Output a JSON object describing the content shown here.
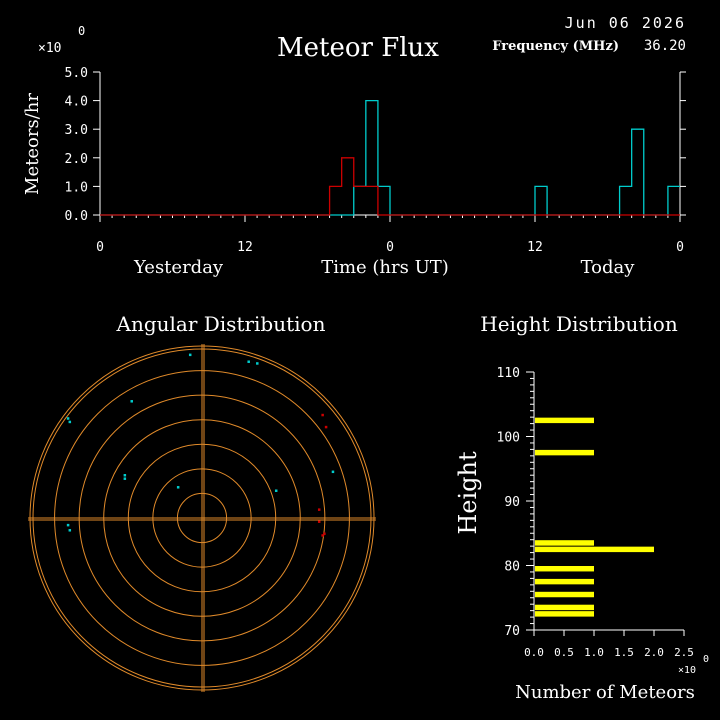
{
  "date": "Jun 06 2026",
  "freq_label": "Frequency (MHz)",
  "freq_value": "36.20",
  "colors": {
    "axis": "#ffffff",
    "cyan": "#00cccc",
    "red": "#cc0000",
    "orange": "#e08a2a",
    "yellow": "#ffff00"
  },
  "chart_data": [
    {
      "type": "bar",
      "title": "Meteor Flux",
      "ylabel": "Meteors/hr",
      "xlabel": "Time (hrs UT)",
      "y_multiplier": "×10",
      "y_multiplier_exp": "0",
      "ylim": [
        0,
        5
      ],
      "y_ticks": [
        "0.0",
        "1.0",
        "2.0",
        "3.0",
        "4.0",
        "5.0"
      ],
      "xlim": [
        0,
        48
      ],
      "x_ticks": [
        {
          "x": 0,
          "label": "0"
        },
        {
          "x": 12,
          "label": "12"
        },
        {
          "x": 24,
          "label": "0"
        },
        {
          "x": 36,
          "label": "12"
        },
        {
          "x": 48,
          "label": "0"
        }
      ],
      "day_labels": [
        {
          "x": 6.5,
          "label": "Yesterday"
        },
        {
          "x": 42,
          "label": "Today"
        }
      ],
      "series": [
        {
          "color": "#00cccc",
          "hours": [
            21,
            22,
            23,
            36,
            43,
            44,
            47
          ],
          "values": [
            1,
            4,
            1,
            1,
            1,
            3,
            1
          ]
        },
        {
          "color": "#cc0000",
          "hours": [
            19,
            20,
            21,
            22
          ],
          "values": [
            1,
            2,
            1,
            1
          ]
        }
      ]
    },
    {
      "type": "scatter",
      "title": "Angular Distribution",
      "ring_count": 7,
      "points": [
        {
          "x": -0.07,
          "y": 0.95,
          "color": "#00cccc"
        },
        {
          "x": 0.27,
          "y": 0.91,
          "color": "#00cccc"
        },
        {
          "x": 0.32,
          "y": 0.9,
          "color": "#00cccc"
        },
        {
          "x": -0.41,
          "y": 0.68,
          "color": "#00cccc"
        },
        {
          "x": -0.78,
          "y": 0.58,
          "color": "#00cccc"
        },
        {
          "x": -0.77,
          "y": 0.56,
          "color": "#00cccc"
        },
        {
          "x": -0.45,
          "y": 0.25,
          "color": "#00cccc"
        },
        {
          "x": -0.45,
          "y": 0.23,
          "color": "#00cccc"
        },
        {
          "x": -0.14,
          "y": 0.18,
          "color": "#00cccc"
        },
        {
          "x": 0.43,
          "y": 0.16,
          "color": "#00cccc"
        },
        {
          "x": 0.76,
          "y": 0.27,
          "color": "#00cccc"
        },
        {
          "x": -0.78,
          "y": -0.04,
          "color": "#00cccc"
        },
        {
          "x": -0.77,
          "y": -0.07,
          "color": "#00cccc"
        },
        {
          "x": 0.7,
          "y": 0.6,
          "color": "#cc0000"
        },
        {
          "x": 0.72,
          "y": 0.53,
          "color": "#cc0000"
        },
        {
          "x": 0.68,
          "y": 0.05,
          "color": "#cc0000"
        },
        {
          "x": 0.68,
          "y": -0.02,
          "color": "#cc0000"
        },
        {
          "x": 0.71,
          "y": -0.09,
          "color": "#cc0000"
        },
        {
          "x": 0.7,
          "y": -0.1,
          "color": "#cc0000"
        }
      ]
    },
    {
      "type": "bar",
      "orientation": "horizontal",
      "title": "Height Distribution",
      "ylabel": "Height",
      "xlabel": "Number of Meteors",
      "x_multiplier": "×10",
      "x_multiplier_exp": "0",
      "ylim": [
        70,
        110
      ],
      "y_ticks": [
        "70",
        "80",
        "90",
        "100",
        "110"
      ],
      "xlim": [
        0,
        2.5
      ],
      "x_ticks": [
        "0.0",
        "0.5",
        "1.0",
        "1.5",
        "2.0",
        "2.5"
      ],
      "heights": [
        72,
        73,
        75,
        77,
        79,
        82,
        83,
        97,
        102
      ],
      "values": [
        1,
        1,
        1,
        1,
        1,
        2,
        1,
        1,
        1
      ]
    }
  ]
}
